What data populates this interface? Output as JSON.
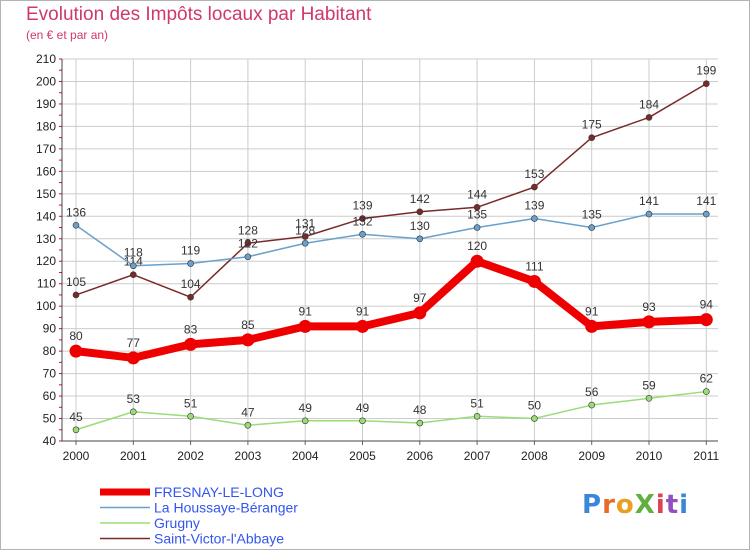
{
  "header": {
    "title": "Evolution des Impôts locaux par Habitant",
    "subtitle": "(en € et par an)"
  },
  "logo": {
    "text": "ProXiti"
  },
  "colors": {
    "title": "#d0386a",
    "grid": "#cccccc",
    "axis_tick_red": "#e0004a"
  },
  "chart_data": {
    "type": "line",
    "title": "Evolution des Impôts locaux par Habitant",
    "subtitle": "(en € et par an)",
    "xlabel": "",
    "ylabel": "",
    "x": [
      "2000",
      "2001",
      "2002",
      "2003",
      "2004",
      "2005",
      "2006",
      "2007",
      "2008",
      "2009",
      "2010",
      "2011"
    ],
    "ylim": [
      40,
      210
    ],
    "yticks": [
      40,
      50,
      60,
      70,
      80,
      90,
      100,
      110,
      120,
      130,
      140,
      150,
      160,
      170,
      180,
      190,
      200,
      210
    ],
    "grid": true,
    "legend_position": "bottom-left",
    "series": [
      {
        "name": "FRESNAY-LE-LONG",
        "color": "#ee0000",
        "legend_color": "#3355ee",
        "thick": true,
        "values": [
          80,
          77,
          83,
          85,
          91,
          91,
          97,
          120,
          111,
          91,
          93,
          94
        ]
      },
      {
        "name": "La Houssaye-Béranger",
        "color": "#6aa0cc",
        "legend_color": "#3355ee",
        "thick": false,
        "values": [
          136,
          118,
          119,
          122,
          128,
          132,
          130,
          135,
          139,
          135,
          141,
          141
        ]
      },
      {
        "name": "Grugny",
        "color": "#99dd77",
        "legend_color": "#3355ee",
        "thick": false,
        "values": [
          45,
          53,
          51,
          47,
          49,
          49,
          48,
          51,
          50,
          56,
          59,
          62
        ]
      },
      {
        "name": "Saint-Victor-l'Abbaye",
        "color": "#7a2a2a",
        "legend_color": "#3355ee",
        "thick": false,
        "values": [
          105,
          114,
          104,
          128,
          131,
          139,
          142,
          144,
          153,
          175,
          184,
          199
        ]
      }
    ]
  }
}
